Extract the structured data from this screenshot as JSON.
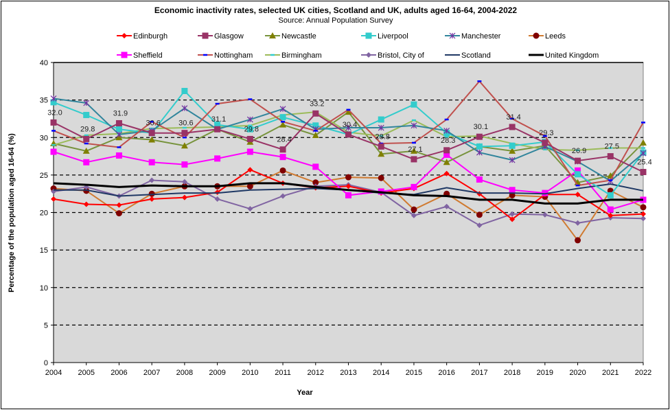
{
  "chart_data": {
    "type": "line",
    "title": "Economic inactivity rates, selected UK cities, Scotland and UK, adults aged 16-64, 2004-2022",
    "subtitle": "Source: Annual Population Survey",
    "xlabel": "Year",
    "ylabel": "Percentage of the population aged 16-64 (%)",
    "ylim": [
      0,
      40
    ],
    "yticks": [
      0,
      5,
      10,
      15,
      20,
      25,
      30,
      35,
      40
    ],
    "grid": "horizontal dashed",
    "legend": "top",
    "x": [
      "2004",
      "2005",
      "2006",
      "2007",
      "2008",
      "2009",
      "2010",
      "2011",
      "2012",
      "2013",
      "2014",
      "2015",
      "2016",
      "2017",
      "2018",
      "2019",
      "2020",
      "2021",
      "2022"
    ],
    "series": [
      {
        "name": "Edinburgh",
        "color": "#ff0000",
        "marker": "diamond",
        "values": [
          21.8,
          21.1,
          21.0,
          21.8,
          22.0,
          22.7,
          25.7,
          23.9,
          23.3,
          23.5,
          22.6,
          23.2,
          25.2,
          22.5,
          19.1,
          22.4,
          22.4,
          19.6,
          19.8
        ]
      },
      {
        "name": "Glasgow",
        "color": "#993366",
        "marker": "square",
        "values": [
          32.0,
          29.8,
          31.9,
          30.6,
          30.6,
          31.1,
          29.8,
          28.4,
          33.2,
          30.4,
          28.8,
          27.1,
          28.3,
          30.1,
          31.4,
          29.3,
          26.9,
          27.5,
          25.4
        ],
        "data_labels": [
          "32.0",
          "29.8",
          "31.9",
          "30.6",
          "30.6",
          "31.1",
          "29.8",
          "28.4",
          "33.2",
          "30.4",
          "28.8",
          "27.1",
          "28.3",
          "30.1",
          "31.4",
          "29.3",
          "26.9",
          "27.5",
          "25.4"
        ]
      },
      {
        "name": "Newcastle",
        "color": "#808000",
        "linecolor": "#77933c",
        "marker": "triangle",
        "values": [
          29.2,
          28.2,
          30.0,
          29.7,
          28.9,
          31.1,
          29.4,
          31.7,
          30.3,
          33.4,
          27.8,
          28.2,
          26.7,
          28.8,
          28.2,
          28.9,
          24.0,
          24.9,
          29.3
        ]
      },
      {
        "name": "Liverpool",
        "color": "#33cccc",
        "marker": "square",
        "values": [
          34.7,
          33.0,
          31.1,
          30.6,
          36.2,
          31.7,
          31.1,
          32.7,
          31.6,
          30.4,
          32.4,
          34.4,
          30.6,
          28.8,
          28.9,
          29.4,
          25.1,
          22.3,
          28.0
        ]
      },
      {
        "name": "Manchester",
        "color": "#31859c",
        "markercolor": "#7030a0",
        "marker": "x",
        "values": [
          35.2,
          34.6,
          30.4,
          30.9,
          33.9,
          31.1,
          32.4,
          33.8,
          31.1,
          31.3,
          31.3,
          31.6,
          30.9,
          28.0,
          27.0,
          28.8,
          26.8,
          24.2,
          27.9
        ]
      },
      {
        "name": "Leeds",
        "color": "#e46c0a",
        "linecolor": "#d07a30",
        "markercolor": "#800000",
        "marker": "circle",
        "values": [
          23.2,
          22.9,
          19.9,
          22.5,
          23.5,
          23.5,
          23.5,
          25.6,
          24.0,
          24.7,
          24.6,
          20.4,
          22.5,
          19.7,
          22.3,
          22.1,
          16.3,
          22.9,
          20.7
        ]
      },
      {
        "name": "Sheffield",
        "color": "#ff00ff",
        "marker": "square",
        "values": [
          28.1,
          26.7,
          27.6,
          26.7,
          26.4,
          27.2,
          28.1,
          27.4,
          26.1,
          22.3,
          22.8,
          23.4,
          27.7,
          24.4,
          23.0,
          22.6,
          25.6,
          20.4,
          21.7
        ]
      },
      {
        "name": "Nottingham",
        "color": "#c0504d",
        "markercolor": "#0000ff",
        "marker": "dash",
        "values": [
          30.9,
          29.2,
          28.7,
          32.1,
          30.0,
          34.5,
          35.1,
          32.1,
          30.9,
          33.7,
          29.2,
          29.3,
          32.4,
          37.5,
          32.5,
          30.2,
          23.6,
          24.3,
          32.0
        ]
      },
      {
        "name": "Birmingham",
        "color": "#9bbb59",
        "markercolor": "#33cccc",
        "marker": "dash",
        "values": [
          29.0,
          30.3,
          30.5,
          31.2,
          31.3,
          31.4,
          31.6,
          33.0,
          33.4,
          30.7,
          30.2,
          32.3,
          30.1,
          30.2,
          29.2,
          28.4,
          28.3,
          28.6,
          28.6
        ]
      },
      {
        "name": "Bristol, City of",
        "color": "#8064a2",
        "marker": "diamond",
        "values": [
          22.8,
          23.4,
          22.2,
          24.3,
          24.1,
          21.8,
          20.5,
          22.2,
          23.5,
          23.7,
          22.7,
          19.6,
          20.8,
          18.3,
          19.8,
          19.7,
          18.6,
          19.3,
          19.2
        ]
      },
      {
        "name": "Scotland",
        "color": "#1f3864",
        "marker": "none",
        "values": [
          23.0,
          23.0,
          22.2,
          22.4,
          22.6,
          22.6,
          23.0,
          23.1,
          23.2,
          23.0,
          22.6,
          22.4,
          23.3,
          22.6,
          22.6,
          22.5,
          23.2,
          23.8,
          22.9
        ]
      },
      {
        "name": "United Kingdom",
        "color": "#000000",
        "marker": "none",
        "width": 3,
        "values": [
          23.9,
          23.7,
          23.4,
          23.6,
          23.5,
          23.5,
          23.9,
          23.9,
          23.4,
          23.0,
          22.7,
          22.3,
          22.2,
          21.7,
          21.7,
          21.2,
          21.2,
          21.7,
          21.7
        ]
      }
    ]
  }
}
